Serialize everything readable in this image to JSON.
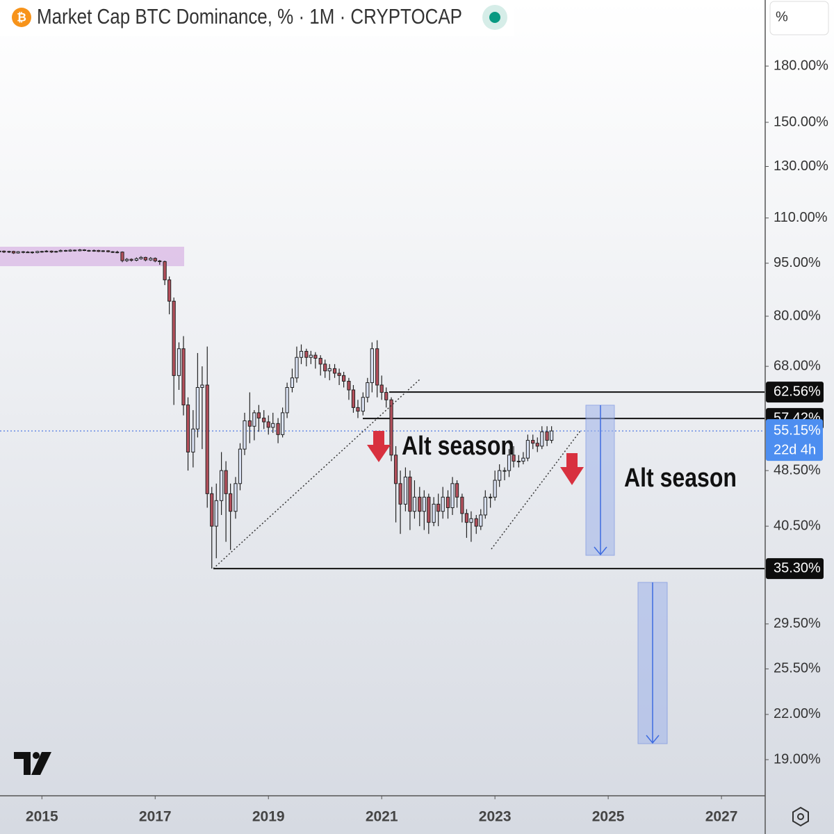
{
  "header": {
    "title": "Market Cap BTC Dominance, % · 1M · CRYPTOCAP",
    "scale_button": "%"
  },
  "chart_data": {
    "type": "candlestick",
    "log_scale": true,
    "up_color": "#dbe3f5",
    "down_color": "#b4505c",
    "x": [
      2014.25,
      2014.33,
      2014.42,
      2014.5,
      2014.58,
      2014.67,
      2014.75,
      2014.83,
      2014.92,
      2015,
      2015.08,
      2015.17,
      2015.25,
      2015.33,
      2015.42,
      2015.5,
      2015.58,
      2015.67,
      2015.75,
      2015.83,
      2015.92,
      2016,
      2016.08,
      2016.17,
      2016.25,
      2016.33,
      2016.42,
      2016.5,
      2016.58,
      2016.67,
      2016.75,
      2016.83,
      2016.92,
      2017,
      2017.08,
      2017.17,
      2017.25,
      2017.33,
      2017.42,
      2017.5,
      2017.58,
      2017.67,
      2017.75,
      2017.83,
      2017.92,
      2018,
      2018.08,
      2018.17,
      2018.25,
      2018.33,
      2018.42,
      2018.5,
      2018.58,
      2018.67,
      2018.75,
      2018.83,
      2018.92,
      2019,
      2019.08,
      2019.17,
      2019.25,
      2019.33,
      2019.42,
      2019.5,
      2019.58,
      2019.67,
      2019.75,
      2019.83,
      2019.92,
      2020,
      2020.08,
      2020.17,
      2020.25,
      2020.33,
      2020.42,
      2020.5,
      2020.58,
      2020.67,
      2020.75,
      2020.83,
      2020.92,
      2021,
      2021.08,
      2021.17,
      2021.25,
      2021.33,
      2021.42,
      2021.5,
      2021.58,
      2021.67,
      2021.75,
      2021.83,
      2021.92,
      2022,
      2022.08,
      2022.17,
      2022.25,
      2022.33,
      2022.42,
      2022.5,
      2022.58,
      2022.67,
      2022.75,
      2022.83,
      2022.92,
      2023,
      2023.08,
      2023.17,
      2023.25,
      2023.33,
      2023.42,
      2023.5,
      2023.58,
      2023.67,
      2023.75,
      2023.83,
      2023.92,
      2024
    ],
    "ohlc": [
      [
        98.6,
        99.1,
        98.3,
        98.8
      ],
      [
        98.8,
        99.0,
        98.2,
        98.5
      ],
      [
        98.5,
        98.9,
        98.2,
        98.7
      ],
      [
        98.7,
        98.9,
        97.9,
        98.2
      ],
      [
        98.2,
        98.8,
        98.0,
        98.6
      ],
      [
        98.6,
        98.8,
        98.1,
        98.4
      ],
      [
        98.4,
        98.8,
        98.2,
        98.5
      ],
      [
        98.5,
        98.7,
        98.0,
        98.3
      ],
      [
        98.3,
        98.9,
        98.1,
        98.7
      ],
      [
        98.7,
        98.9,
        98.3,
        98.6
      ],
      [
        98.6,
        99.1,
        98.4,
        98.8
      ],
      [
        98.8,
        99.0,
        98.2,
        98.5
      ],
      [
        98.5,
        98.9,
        98.3,
        98.7
      ],
      [
        98.7,
        99.3,
        98.5,
        99.0
      ],
      [
        99.0,
        99.2,
        98.6,
        98.8
      ],
      [
        98.8,
        99.4,
        98.6,
        99.1
      ],
      [
        99.1,
        99.3,
        98.7,
        98.9
      ],
      [
        98.9,
        99.5,
        98.7,
        99.2
      ],
      [
        99.2,
        99.4,
        98.8,
        99.0
      ],
      [
        99.0,
        99.2,
        98.6,
        98.8
      ],
      [
        98.8,
        99.3,
        98.6,
        99.0
      ],
      [
        99.0,
        99.2,
        98.5,
        98.7
      ],
      [
        98.7,
        99.1,
        98.5,
        98.9
      ],
      [
        98.9,
        99.1,
        98.4,
        98.6
      ],
      [
        98.6,
        98.8,
        98.2,
        98.4
      ],
      [
        98.4,
        98.9,
        98.1,
        98.5
      ],
      [
        98.5,
        98.7,
        95.3,
        95.8
      ],
      [
        95.8,
        96.6,
        95.4,
        96.2
      ],
      [
        96.2,
        96.5,
        95.5,
        95.9
      ],
      [
        95.9,
        96.8,
        95.6,
        96.4
      ],
      [
        96.4,
        97.2,
        96.1,
        96.8
      ],
      [
        96.8,
        97.0,
        95.6,
        96.0
      ],
      [
        96.0,
        96.9,
        95.7,
        96.5
      ],
      [
        96.5,
        96.8,
        95.3,
        95.7
      ],
      [
        95.7,
        96.0,
        94.5,
        95.5
      ],
      [
        95.5,
        95.8,
        88.5,
        90.0
      ],
      [
        90.0,
        91.0,
        80.5,
        84.0
      ],
      [
        84.0,
        85.0,
        60.0,
        66.0
      ],
      [
        66.0,
        73.5,
        63.0,
        72.0
      ],
      [
        72.0,
        75.0,
        58.0,
        60.0
      ],
      [
        60.0,
        61.5,
        48.5,
        51.5
      ],
      [
        51.5,
        59.0,
        49.0,
        55.5
      ],
      [
        55.5,
        71.0,
        54.0,
        63.5
      ],
      [
        63.5,
        68.0,
        52.0,
        64.0
      ],
      [
        64.0,
        72.5,
        43.0,
        45.0
      ],
      [
        45.0,
        46.0,
        35.3,
        40.5
      ],
      [
        40.5,
        46.5,
        36.5,
        44.0
      ],
      [
        44.0,
        51.5,
        42.0,
        48.5
      ],
      [
        48.5,
        50.0,
        38.5,
        45.0
      ],
      [
        45.0,
        46.5,
        37.5,
        42.5
      ],
      [
        42.5,
        47.5,
        41.5,
        46.5
      ],
      [
        46.5,
        53.0,
        45.5,
        52.0
      ],
      [
        52.0,
        58.5,
        51.0,
        57.0
      ],
      [
        57.0,
        62.5,
        53.0,
        56.0
      ],
      [
        56.0,
        59.0,
        53.5,
        58.5
      ],
      [
        58.5,
        60.0,
        55.0,
        57.5
      ],
      [
        57.5,
        59.0,
        55.5,
        56.8
      ],
      [
        56.8,
        58.0,
        54.5,
        55.8
      ],
      [
        55.8,
        58.5,
        54.8,
        56.5
      ],
      [
        56.5,
        57.5,
        53.0,
        54.5
      ],
      [
        54.5,
        59.5,
        54.0,
        58.5
      ],
      [
        58.5,
        64.5,
        57.5,
        63.5
      ],
      [
        63.5,
        67.5,
        62.5,
        65.5
      ],
      [
        65.5,
        72.5,
        64.5,
        70.0
      ],
      [
        70.0,
        73.0,
        68.5,
        71.4
      ],
      [
        71.4,
        72.0,
        68.0,
        70.0
      ],
      [
        70.0,
        71.5,
        68.5,
        70.5
      ],
      [
        70.5,
        71.2,
        67.5,
        69.8
      ],
      [
        69.8,
        70.5,
        66.0,
        68.5
      ],
      [
        68.5,
        69.5,
        65.5,
        67.0
      ],
      [
        67.0,
        68.5,
        65.0,
        67.5
      ],
      [
        67.5,
        68.5,
        65.5,
        66.5
      ],
      [
        66.5,
        67.5,
        64.0,
        66.0
      ],
      [
        66.0,
        66.8,
        63.5,
        64.8
      ],
      [
        64.8,
        65.5,
        61.0,
        63.0
      ],
      [
        63.0,
        64.0,
        58.5,
        59.5
      ],
      [
        59.5,
        61.0,
        57.5,
        58.8
      ],
      [
        58.8,
        62.5,
        58.0,
        61.5
      ],
      [
        61.5,
        65.5,
        60.5,
        64.5
      ],
      [
        64.5,
        73.5,
        62.5,
        72.0
      ],
      [
        72.0,
        74.0,
        61.5,
        64.0
      ],
      [
        64.0,
        66.0,
        61.0,
        62.5
      ],
      [
        62.5,
        63.5,
        59.5,
        61.0
      ],
      [
        61.0,
        61.5,
        50.0,
        51.0
      ],
      [
        51.0,
        52.5,
        41.0,
        46.5
      ],
      [
        46.5,
        48.5,
        39.5,
        43.5
      ],
      [
        43.5,
        49.0,
        42.5,
        47.5
      ],
      [
        47.5,
        48.5,
        40.0,
        42.5
      ],
      [
        42.5,
        47.0,
        41.5,
        44.5
      ],
      [
        44.5,
        46.0,
        40.5,
        42.5
      ],
      [
        42.5,
        45.5,
        40.0,
        44.5
      ],
      [
        44.5,
        45.0,
        39.5,
        41.0
      ],
      [
        41.0,
        44.5,
        40.5,
        43.5
      ],
      [
        43.5,
        45.0,
        40.5,
        42.5
      ],
      [
        42.5,
        46.0,
        41.5,
        44.5
      ],
      [
        44.5,
        45.5,
        41.5,
        43.0
      ],
      [
        43.0,
        47.5,
        42.0,
        46.5
      ],
      [
        46.5,
        47.0,
        43.0,
        44.5
      ],
      [
        44.5,
        45.0,
        41.0,
        42.2
      ],
      [
        42.2,
        42.8,
        39.0,
        41.0
      ],
      [
        41.0,
        42.5,
        38.5,
        41.5
      ],
      [
        41.5,
        42.0,
        39.5,
        40.5
      ],
      [
        40.5,
        42.8,
        40.0,
        42.0
      ],
      [
        42.0,
        45.5,
        41.5,
        44.5
      ],
      [
        44.5,
        45.0,
        43.0,
        44.5
      ],
      [
        44.5,
        48.5,
        44.0,
        47.0
      ],
      [
        47.0,
        49.5,
        46.0,
        48.5
      ],
      [
        48.5,
        49.0,
        47.0,
        48.5
      ],
      [
        48.5,
        52.0,
        47.5,
        51.0
      ],
      [
        51.0,
        52.5,
        49.0,
        50.0
      ],
      [
        50.0,
        51.0,
        49.0,
        50.0
      ],
      [
        50.0,
        51.5,
        49.5,
        50.5
      ],
      [
        50.5,
        54.5,
        50.0,
        53.5
      ],
      [
        53.5,
        54.5,
        52.0,
        53.0
      ],
      [
        53.0,
        54.0,
        51.5,
        52.5
      ],
      [
        52.5,
        56.0,
        52.0,
        55.0
      ],
      [
        55.0,
        56.0,
        52.5,
        53.5
      ],
      [
        53.5,
        56.0,
        53.0,
        55.15
      ]
    ],
    "xlim": [
      2014.26,
      2027.76
    ],
    "xticks": [
      2015,
      2017,
      2019,
      2021,
      2023,
      2025,
      2027
    ],
    "ylim": [
      16.9,
      223
    ],
    "yticks": [
      {
        "value": 180,
        "label": "180.00%"
      },
      {
        "value": 150,
        "label": "150.00%"
      },
      {
        "value": 130,
        "label": "130.00%"
      },
      {
        "value": 110,
        "label": "110.00%"
      },
      {
        "value": 95,
        "label": "95.00%"
      },
      {
        "value": 80,
        "label": "80.00%"
      },
      {
        "value": 68,
        "label": "68.00%"
      },
      {
        "value": 48.5,
        "label": "48.50%"
      },
      {
        "value": 40.5,
        "label": "40.50%"
      },
      {
        "value": 29.5,
        "label": "29.50%"
      },
      {
        "value": 25.5,
        "label": "25.50%"
      },
      {
        "value": 22,
        "label": "22.00%"
      },
      {
        "value": 19,
        "label": "19.00%"
      }
    ],
    "levels": [
      {
        "value": 62.56,
        "label": "62.56%"
      },
      {
        "value": 57.42,
        "label": "57.42%"
      },
      {
        "value": 35.3,
        "label": "35.30%"
      }
    ],
    "last_price": {
      "value": 55.15,
      "label": "55.15%"
    },
    "countdown": "22d 4h",
    "annotations": [
      "Alt season",
      "Alt season"
    ]
  }
}
